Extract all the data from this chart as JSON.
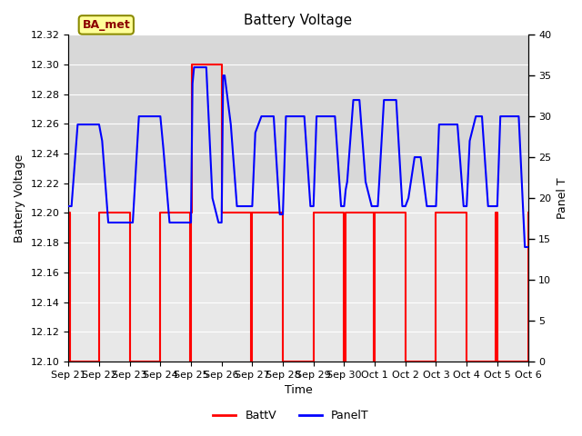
{
  "title": "Battery Voltage",
  "xlabel": "Time",
  "ylabel_left": "Battery Voltage",
  "ylabel_right": "Panel T",
  "x_tick_labels": [
    "Sep 21",
    "Sep 22",
    "Sep 23",
    "Sep 24",
    "Sep 25",
    "Sep 26",
    "Sep 27",
    "Sep 28",
    "Sep 29",
    "Sep 30",
    "Oct 1",
    "Oct 2",
    "Oct 3",
    "Oct 4",
    "Oct 5",
    "Oct 6"
  ],
  "ylim_left": [
    12.1,
    12.32
  ],
  "ylim_right": [
    0,
    40
  ],
  "yticks_left": [
    12.1,
    12.12,
    12.14,
    12.16,
    12.18,
    12.2,
    12.22,
    12.24,
    12.26,
    12.28,
    12.3,
    12.32
  ],
  "yticks_right": [
    0,
    5,
    10,
    15,
    20,
    25,
    30,
    35,
    40
  ],
  "batt_color": "#FF0000",
  "panel_color": "#0000FF",
  "background_color": "#FFFFFF",
  "plot_bg_color": "#E8E8E8",
  "shaded_band_color": "#D0D0D0",
  "annotation_text": "BA_met",
  "annotation_bg": "#FFFF99",
  "annotation_border": "#8B8B00",
  "legend_batt": "BattV",
  "legend_panel": "PanelT",
  "batt_data_x": [
    0,
    0.04,
    0.04,
    1.0,
    1.0,
    2.0,
    2.0,
    3.0,
    3.0,
    3.96,
    3.96,
    4.0,
    4.0,
    4.04,
    4.04,
    5.0,
    5.0,
    5.96,
    5.96,
    6.0,
    6.0,
    7.0,
    7.0,
    8.0,
    8.0,
    9.0,
    9.0,
    9.04,
    9.04,
    9.96,
    9.96,
    10.0,
    10.0,
    11.0,
    11.0,
    12.0,
    12.0,
    13.0,
    13.0,
    13.96,
    13.96,
    14.0,
    14.0,
    15.0,
    15.0
  ],
  "batt_data_y": [
    12.2,
    12.2,
    12.1,
    12.1,
    12.2,
    12.2,
    12.1,
    12.1,
    12.2,
    12.2,
    12.1,
    12.1,
    12.2,
    12.2,
    12.3,
    12.3,
    12.2,
    12.2,
    12.1,
    12.1,
    12.2,
    12.2,
    12.1,
    12.1,
    12.2,
    12.2,
    12.1,
    12.1,
    12.2,
    12.2,
    12.1,
    12.1,
    12.2,
    12.2,
    12.1,
    12.1,
    12.2,
    12.2,
    12.1,
    12.1,
    12.2,
    12.2,
    12.1,
    12.1,
    12.2
  ],
  "panel_data_x": [
    0.0,
    0.1,
    0.3,
    0.5,
    0.7,
    0.9,
    1.0,
    1.1,
    1.3,
    1.5,
    1.7,
    1.9,
    2.0,
    2.1,
    2.3,
    2.5,
    2.7,
    2.9,
    3.0,
    3.1,
    3.3,
    3.5,
    3.7,
    3.9,
    4.0,
    4.05,
    4.1,
    4.3,
    4.5,
    4.7,
    4.9,
    5.0,
    5.05,
    5.1,
    5.3,
    5.5,
    5.7,
    5.9,
    6.0,
    6.1,
    6.3,
    6.5,
    6.7,
    6.9,
    7.0,
    7.1,
    7.3,
    7.5,
    7.7,
    7.9,
    8.0,
    8.1,
    8.3,
    8.5,
    8.7,
    8.9,
    9.0,
    9.05,
    9.1,
    9.3,
    9.5,
    9.7,
    9.9,
    10.0,
    10.1,
    10.3,
    10.5,
    10.7,
    10.9,
    11.0,
    11.1,
    11.3,
    11.5,
    11.7,
    11.9,
    12.0,
    12.1,
    12.3,
    12.5,
    12.7,
    12.9,
    13.0,
    13.1,
    13.3,
    13.5,
    13.7,
    13.9,
    14.0,
    14.1,
    14.3,
    14.5,
    14.7,
    14.9,
    15.0
  ],
  "panel_data_y": [
    19,
    19,
    29,
    29,
    29,
    29,
    29,
    27,
    17,
    17,
    17,
    17,
    17,
    17,
    30,
    30,
    30,
    30,
    30,
    26,
    17,
    17,
    17,
    17,
    17,
    34,
    36,
    36,
    36,
    20,
    17,
    17,
    35,
    35,
    29,
    19,
    19,
    19,
    19,
    28,
    30,
    30,
    30,
    18,
    18,
    30,
    30,
    30,
    30,
    19,
    19,
    30,
    30,
    30,
    30,
    19,
    19,
    21,
    22,
    32,
    32,
    22,
    19,
    19,
    19,
    32,
    32,
    32,
    19,
    19,
    20,
    25,
    25,
    19,
    19,
    19,
    29,
    29,
    29,
    29,
    19,
    19,
    27,
    30,
    30,
    19,
    19,
    19,
    30,
    30,
    30,
    30,
    14,
    14
  ]
}
